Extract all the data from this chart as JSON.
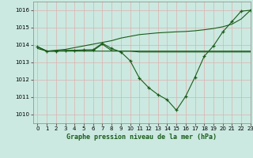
{
  "title": "Graphe pression niveau de la mer (hPa)",
  "bg_color": "#cbe9e0",
  "grid_color": "#b0d4c8",
  "line_color": "#1a5c1a",
  "xlim": [
    -0.5,
    23
  ],
  "ylim": [
    1009.5,
    1016.5
  ],
  "yticks": [
    1010,
    1011,
    1012,
    1013,
    1014,
    1015,
    1016
  ],
  "xticks": [
    0,
    1,
    2,
    3,
    4,
    5,
    6,
    7,
    8,
    9,
    10,
    11,
    12,
    13,
    14,
    15,
    16,
    17,
    18,
    19,
    20,
    21,
    22,
    23
  ],
  "hours": [
    0,
    1,
    2,
    3,
    4,
    5,
    6,
    7,
    8,
    9,
    10,
    11,
    12,
    13,
    14,
    15,
    16,
    17,
    18,
    19,
    20,
    21,
    22,
    23
  ],
  "line1": [
    1013.8,
    1013.65,
    1013.65,
    1013.65,
    1013.65,
    1013.65,
    1013.65,
    1013.65,
    1013.65,
    1013.65,
    1013.65,
    1013.65,
    1013.65,
    1013.65,
    1013.65,
    1013.65,
    1013.65,
    1013.65,
    1013.65,
    1013.65,
    1013.65,
    1013.65,
    1013.65,
    1013.65
  ],
  "line2": [
    1013.9,
    1013.65,
    1013.65,
    1013.68,
    1013.68,
    1013.68,
    1013.68,
    1014.05,
    1013.68,
    1013.65,
    1013.65,
    1013.6,
    1013.6,
    1013.6,
    1013.6,
    1013.6,
    1013.6,
    1013.6,
    1013.6,
    1013.6,
    1013.6,
    1013.6,
    1013.6,
    1013.6
  ],
  "line3": [
    1013.9,
    1013.65,
    1013.65,
    1013.68,
    1013.7,
    1013.72,
    1013.73,
    1014.1,
    1013.8,
    1013.6,
    1013.1,
    1012.1,
    1011.55,
    1011.15,
    1010.85,
    1010.25,
    1011.05,
    1012.15,
    1013.35,
    1013.95,
    1014.75,
    1015.35,
    1015.95,
    1016.0
  ],
  "line3_hours": [
    0,
    1,
    2,
    3,
    4,
    5,
    6,
    7,
    8,
    9,
    10,
    11,
    12,
    13,
    14,
    15,
    16,
    17,
    18,
    19,
    20,
    21,
    22,
    23
  ],
  "line4": [
    1013.9,
    1013.65,
    1013.7,
    1013.75,
    1013.85,
    1013.95,
    1014.05,
    1014.15,
    1014.25,
    1014.4,
    1014.5,
    1014.6,
    1014.65,
    1014.7,
    1014.73,
    1014.76,
    1014.78,
    1014.82,
    1014.88,
    1014.95,
    1015.05,
    1015.2,
    1015.5,
    1016.0
  ]
}
